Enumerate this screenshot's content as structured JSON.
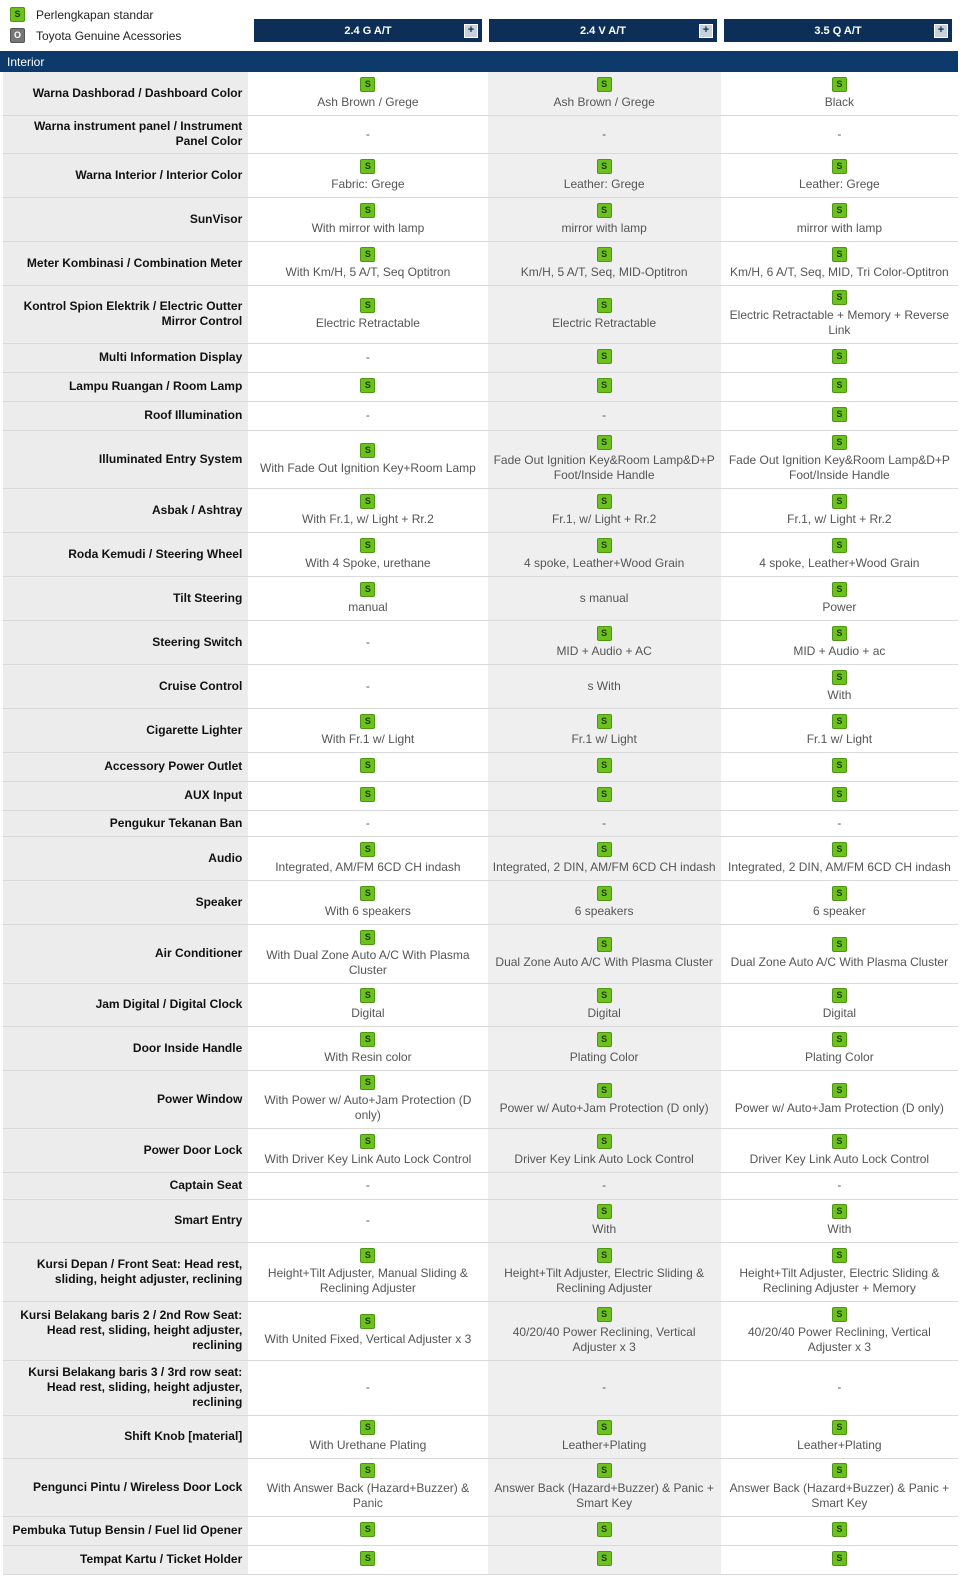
{
  "legend": {
    "standard_label": "Perlengkapan standar",
    "standard_badge": "S",
    "accessory_label": "Toyota Genuine Acessories",
    "accessory_badge": "O"
  },
  "models": [
    "2.4 G A/T",
    "2.4 V A/T",
    "3.5 Q A/T"
  ],
  "expand_symbol": "+",
  "section_title": "Interior",
  "colors": {
    "header_bg": "#0d2f57",
    "section_bg": "#0d3a6a",
    "badge_green": "#6cc11f"
  },
  "rows": [
    {
      "label": "Warna Dashborad / Dashboard Color",
      "cells": [
        {
          "s": true,
          "text": "Ash Brown / Grege"
        },
        {
          "s": true,
          "text": "Ash Brown / Grege"
        },
        {
          "s": true,
          "text": "Black"
        }
      ]
    },
    {
      "label": "Warna instrument panel / Instrument Panel Color",
      "cells": [
        {
          "s": false,
          "text": "-"
        },
        {
          "s": false,
          "text": "-"
        },
        {
          "s": false,
          "text": "-"
        }
      ]
    },
    {
      "label": "Warna Interior / Interior Color",
      "cells": [
        {
          "s": true,
          "text": "Fabric: Grege"
        },
        {
          "s": true,
          "text": "Leather: Grege"
        },
        {
          "s": true,
          "text": "Leather: Grege"
        }
      ]
    },
    {
      "label": "SunVisor",
      "cells": [
        {
          "s": true,
          "text": "With mirror with lamp"
        },
        {
          "s": true,
          "text": "mirror with lamp"
        },
        {
          "s": true,
          "text": "mirror with lamp"
        }
      ]
    },
    {
      "label": "Meter Kombinasi / Combination Meter",
      "cells": [
        {
          "s": true,
          "text": "With Km/H, 5 A/T, Seq Optitron"
        },
        {
          "s": true,
          "text": "Km/H, 5 A/T, Seq, MID-Optitron"
        },
        {
          "s": true,
          "text": "Km/H, 6 A/T, Seq, MID, Tri Color-Optitron"
        }
      ]
    },
    {
      "label": "Kontrol Spion Elektrik / Electric Outter Mirror Control",
      "cells": [
        {
          "s": true,
          "text": "Electric Retractable"
        },
        {
          "s": true,
          "text": "Electric Retractable"
        },
        {
          "s": true,
          "text": "Electric Retractable + Memory + Reverse Link"
        }
      ]
    },
    {
      "label": "Multi Information Display",
      "cells": [
        {
          "s": false,
          "text": "-"
        },
        {
          "s": true,
          "text": ""
        },
        {
          "s": true,
          "text": ""
        }
      ]
    },
    {
      "label": "Lampu Ruangan / Room Lamp",
      "cells": [
        {
          "s": true,
          "text": ""
        },
        {
          "s": true,
          "text": ""
        },
        {
          "s": true,
          "text": ""
        }
      ]
    },
    {
      "label": "Roof Illumination",
      "cells": [
        {
          "s": false,
          "text": "-"
        },
        {
          "s": false,
          "text": "-"
        },
        {
          "s": true,
          "text": ""
        }
      ]
    },
    {
      "label": "Illuminated Entry System",
      "cells": [
        {
          "s": true,
          "text": "With Fade Out Ignition Key+Room Lamp"
        },
        {
          "s": true,
          "text": "Fade Out Ignition Key&Room Lamp&D+P Foot/Inside Handle"
        },
        {
          "s": true,
          "text": "Fade Out Ignition Key&Room Lamp&D+P Foot/Inside Handle"
        }
      ]
    },
    {
      "label": "Asbak / Ashtray",
      "cells": [
        {
          "s": true,
          "text": "With Fr.1, w/ Light + Rr.2"
        },
        {
          "s": true,
          "text": "Fr.1, w/ Light + Rr.2"
        },
        {
          "s": true,
          "text": "Fr.1, w/ Light + Rr.2"
        }
      ]
    },
    {
      "label": "Roda Kemudi / Steering Wheel",
      "cells": [
        {
          "s": true,
          "text": "With 4 Spoke, urethane"
        },
        {
          "s": true,
          "text": "4 spoke, Leather+Wood Grain"
        },
        {
          "s": true,
          "text": "4 spoke, Leather+Wood Grain"
        }
      ]
    },
    {
      "label": "Tilt Steering",
      "cells": [
        {
          "s": true,
          "text": "manual"
        },
        {
          "s": false,
          "text": "s manual"
        },
        {
          "s": true,
          "text": "Power"
        }
      ]
    },
    {
      "label": "Steering Switch",
      "cells": [
        {
          "s": false,
          "text": "-"
        },
        {
          "s": true,
          "text": "MID + Audio + AC"
        },
        {
          "s": true,
          "text": "MID + Audio + ac"
        }
      ]
    },
    {
      "label": "Cruise Control",
      "cells": [
        {
          "s": false,
          "text": "-"
        },
        {
          "s": false,
          "text": "s With"
        },
        {
          "s": true,
          "text": "With"
        }
      ]
    },
    {
      "label": "Cigarette Lighter",
      "cells": [
        {
          "s": true,
          "text": "With Fr.1 w/ Light"
        },
        {
          "s": true,
          "text": "Fr.1 w/ Light"
        },
        {
          "s": true,
          "text": "Fr.1 w/ Light"
        }
      ]
    },
    {
      "label": "Accessory Power Outlet",
      "cells": [
        {
          "s": true,
          "text": ""
        },
        {
          "s": true,
          "text": ""
        },
        {
          "s": true,
          "text": ""
        }
      ]
    },
    {
      "label": "AUX Input",
      "cells": [
        {
          "s": true,
          "text": ""
        },
        {
          "s": true,
          "text": ""
        },
        {
          "s": true,
          "text": ""
        }
      ]
    },
    {
      "label": "Pengukur Tekanan Ban",
      "cells": [
        {
          "s": false,
          "text": "-"
        },
        {
          "s": false,
          "text": "-"
        },
        {
          "s": false,
          "text": "-"
        }
      ]
    },
    {
      "label": "Audio",
      "cells": [
        {
          "s": true,
          "text": "Integrated, AM/FM 6CD CH indash"
        },
        {
          "s": true,
          "text": "Integrated, 2 DIN, AM/FM 6CD CH indash"
        },
        {
          "s": true,
          "text": "Integrated, 2 DIN, AM/FM 6CD CH indash"
        }
      ]
    },
    {
      "label": "Speaker",
      "cells": [
        {
          "s": true,
          "text": "With 6 speakers"
        },
        {
          "s": true,
          "text": "6 speakers"
        },
        {
          "s": true,
          "text": "6 speaker"
        }
      ]
    },
    {
      "label": "Air Conditioner",
      "cells": [
        {
          "s": true,
          "text": "With Dual Zone Auto A/C With Plasma Cluster"
        },
        {
          "s": true,
          "text": "Dual Zone Auto A/C With Plasma Cluster"
        },
        {
          "s": true,
          "text": "Dual Zone Auto A/C With Plasma Cluster"
        }
      ]
    },
    {
      "label": "Jam Digital / Digital Clock",
      "cells": [
        {
          "s": true,
          "text": "Digital"
        },
        {
          "s": true,
          "text": "Digital"
        },
        {
          "s": true,
          "text": "Digital"
        }
      ]
    },
    {
      "label": "Door Inside Handle",
      "cells": [
        {
          "s": true,
          "text": "With Resin color"
        },
        {
          "s": true,
          "text": "Plating Color"
        },
        {
          "s": true,
          "text": "Plating Color"
        }
      ]
    },
    {
      "label": "Power Window",
      "cells": [
        {
          "s": true,
          "text": "With Power w/ Auto+Jam Protection (D only)"
        },
        {
          "s": true,
          "text": "Power w/ Auto+Jam Protection (D only)"
        },
        {
          "s": true,
          "text": "Power w/ Auto+Jam Protection (D only)"
        }
      ]
    },
    {
      "label": "Power Door Lock",
      "cells": [
        {
          "s": true,
          "text": "With Driver Key Link Auto Lock Control"
        },
        {
          "s": true,
          "text": "Driver Key Link Auto Lock Control"
        },
        {
          "s": true,
          "text": "Driver Key Link Auto Lock Control"
        }
      ]
    },
    {
      "label": "Captain Seat",
      "cells": [
        {
          "s": false,
          "text": "-"
        },
        {
          "s": false,
          "text": "-"
        },
        {
          "s": false,
          "text": "-"
        }
      ]
    },
    {
      "label": "Smart Entry",
      "cells": [
        {
          "s": false,
          "text": "-"
        },
        {
          "s": true,
          "text": "With"
        },
        {
          "s": true,
          "text": "With"
        }
      ]
    },
    {
      "label": "Kursi Depan / Front Seat: Head rest, sliding, height adjuster, reclining",
      "cells": [
        {
          "s": true,
          "text": "Height+Tilt Adjuster, Manual Sliding & Reclining Adjuster"
        },
        {
          "s": true,
          "text": "Height+Tilt Adjuster, Electric Sliding & Reclining Adjuster"
        },
        {
          "s": true,
          "text": "Height+Tilt Adjuster, Electric Sliding & Reclining Adjuster + Memory"
        }
      ]
    },
    {
      "label": "Kursi Belakang baris 2 / 2nd Row Seat: Head rest, sliding, height adjuster, reclining",
      "cells": [
        {
          "s": true,
          "text": "With United Fixed, Vertical Adjuster x 3"
        },
        {
          "s": true,
          "text": "40/20/40 Power Reclining, Vertical Adjuster x 3"
        },
        {
          "s": true,
          "text": "40/20/40 Power Reclining, Vertical Adjuster x 3"
        }
      ]
    },
    {
      "label": "Kursi Belakang baris 3 / 3rd row seat: Head rest, sliding, height adjuster, reclining",
      "cells": [
        {
          "s": false,
          "text": "-"
        },
        {
          "s": false,
          "text": "-"
        },
        {
          "s": false,
          "text": "-"
        }
      ]
    },
    {
      "label": "Shift Knob [material]",
      "cells": [
        {
          "s": true,
          "text": "With Urethane Plating"
        },
        {
          "s": true,
          "text": "Leather+Plating"
        },
        {
          "s": true,
          "text": "Leather+Plating"
        }
      ]
    },
    {
      "label": "Pengunci Pintu / Wireless Door Lock",
      "cells": [
        {
          "s": true,
          "text": "With Answer Back (Hazard+Buzzer) & Panic"
        },
        {
          "s": true,
          "text": "Answer Back (Hazard+Buzzer) & Panic + Smart Key"
        },
        {
          "s": true,
          "text": "Answer Back (Hazard+Buzzer) & Panic + Smart Key"
        }
      ]
    },
    {
      "label": "Pembuka Tutup Bensin / Fuel lid Opener",
      "cells": [
        {
          "s": true,
          "text": ""
        },
        {
          "s": true,
          "text": ""
        },
        {
          "s": true,
          "text": ""
        }
      ]
    },
    {
      "label": "Tempat Kartu / Ticket Holder",
      "cells": [
        {
          "s": true,
          "text": ""
        },
        {
          "s": true,
          "text": ""
        },
        {
          "s": true,
          "text": ""
        }
      ]
    }
  ]
}
